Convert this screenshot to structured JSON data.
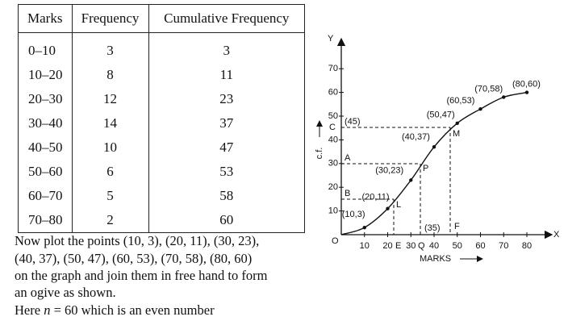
{
  "table": {
    "header": [
      "Marks",
      "Frequency",
      "Cumulative Frequency"
    ],
    "rows": [
      [
        "0–10",
        3,
        3
      ],
      [
        "10–20",
        8,
        11
      ],
      [
        "20–30",
        12,
        23
      ],
      [
        "30–40",
        14,
        37
      ],
      [
        "40–50",
        10,
        47
      ],
      [
        "50–60",
        6,
        53
      ],
      [
        "60–70",
        5,
        58
      ],
      [
        "70–80",
        2,
        60
      ]
    ]
  },
  "text": {
    "lines": [
      "Now plot the points (10, 3), (20, 11), (30, 23),",
      "(40, 37), (50, 47), (60, 53), (70, 58), (80, 60)",
      "on the graph and join them in free hand to form",
      "an ogive as shown."
    ],
    "last": [
      "Here ",
      "n",
      " = 60 which is an even number"
    ]
  },
  "graph": {
    "y_axis_letter": "Y",
    "x_axis_letter": "X",
    "origin": "O",
    "y_label": "c.f.",
    "x_label": "MARKS",
    "xticks": [
      10,
      20,
      30,
      40,
      50,
      60,
      70,
      80
    ],
    "yticks": [
      10,
      20,
      30,
      40,
      50,
      60,
      70
    ],
    "points": [
      {
        "x": 10,
        "y": 3,
        "label": "(10,3)"
      },
      {
        "x": 20,
        "y": 11,
        "label": "(20,11)"
      },
      {
        "x": 30,
        "y": 23,
        "label": "(30,23)"
      },
      {
        "x": 40,
        "y": 37,
        "label": "(40,37)"
      },
      {
        "x": 50,
        "y": 47,
        "label": "(50,47)"
      },
      {
        "x": 60,
        "y": 53,
        "label": "(60,53)"
      },
      {
        "x": 70,
        "y": 58,
        "label": "(70,58)"
      },
      {
        "x": 80,
        "y": 60,
        "label": "(80,60)"
      }
    ],
    "letters": {
      "C": "C",
      "c_value": "(45)",
      "A": "A",
      "B": "B",
      "M": "M",
      "P": "P",
      "L": "L",
      "E": "E",
      "Q": "Q",
      "F": "F",
      "q_value": "(35)"
    }
  }
}
